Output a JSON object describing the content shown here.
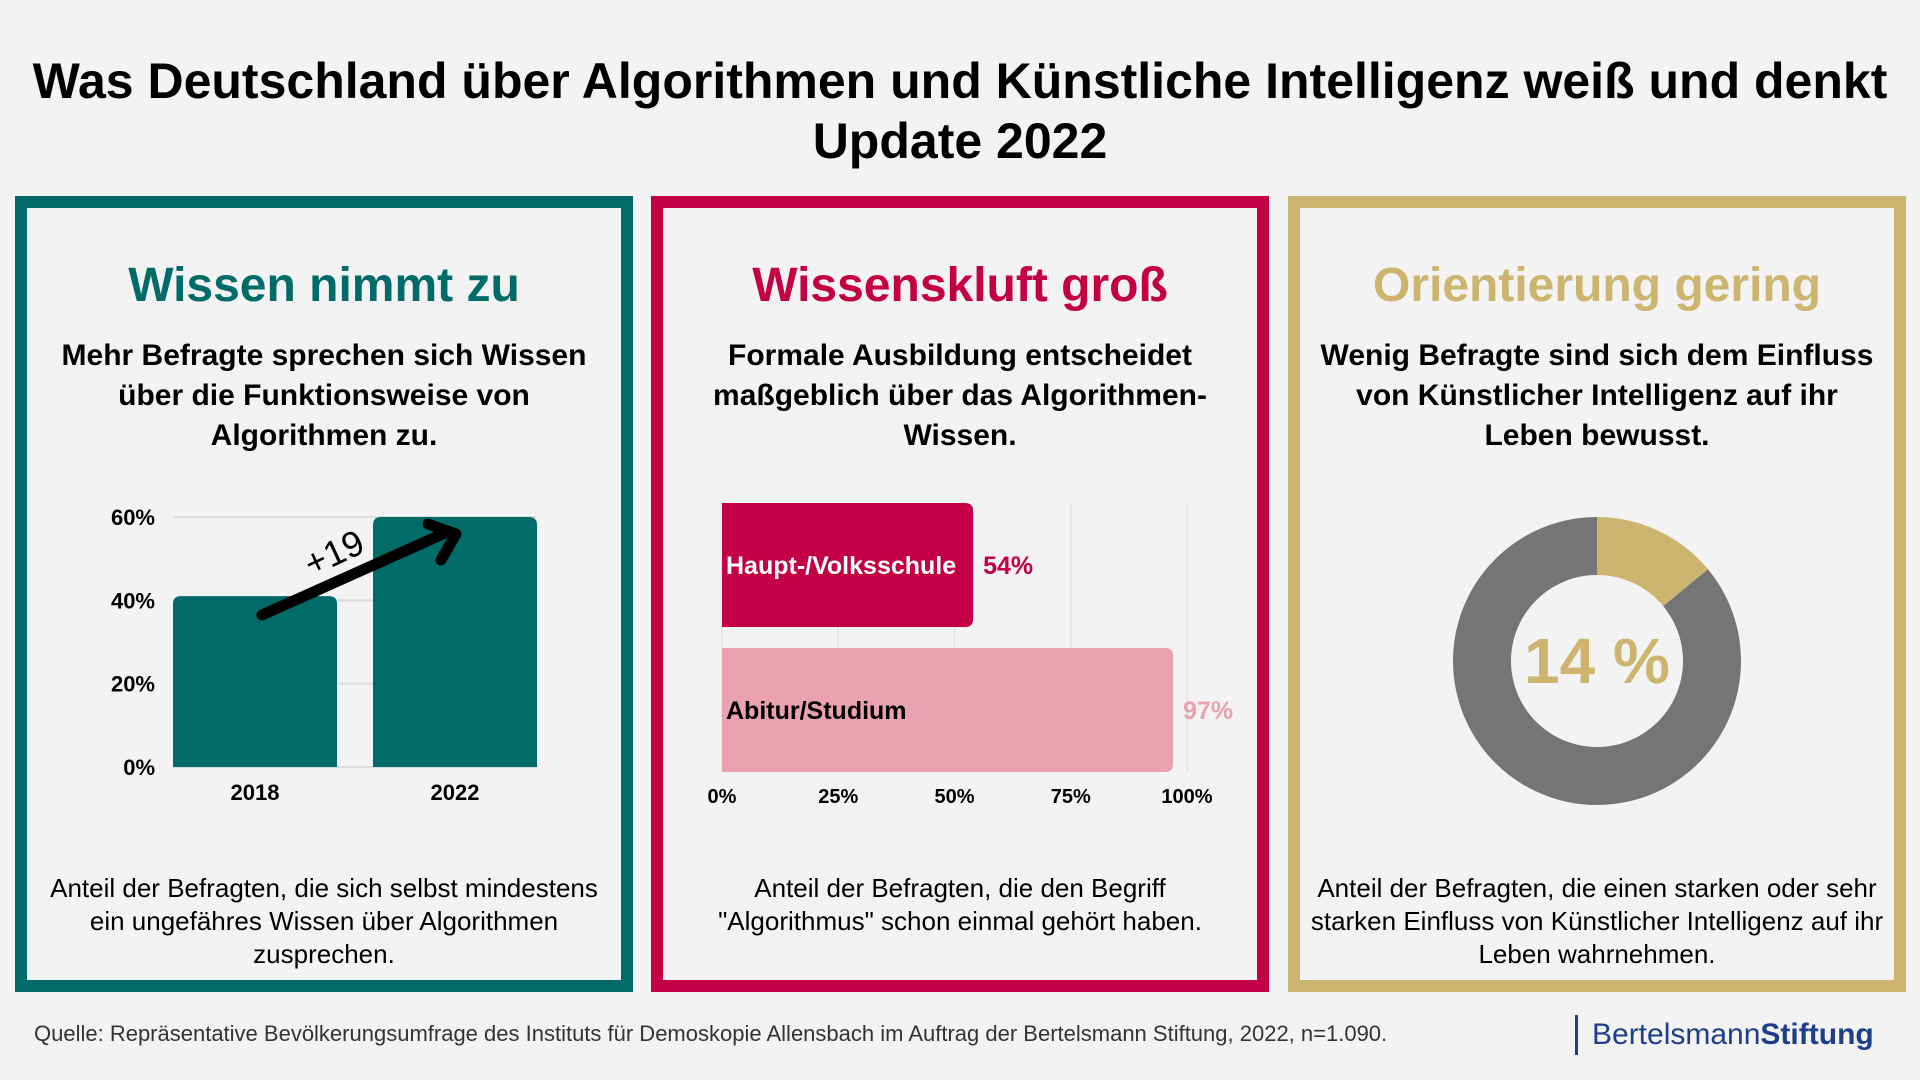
{
  "title": {
    "line1": "Was Deutschland über Algorithmen und Künstliche Intelligenz weiß und denkt",
    "line2": "Update 2022"
  },
  "panels": [
    {
      "heading": "Wissen nimmt zu",
      "subtitle": "Mehr Befragte sprechen sich Wissen über die Funktionsweise von Algorithmen zu.",
      "caption": "Anteil der Befragten, die sich selbst mindestens ein ungefähres Wissen über Algorithmen zusprechen.",
      "color": "#006b68"
    },
    {
      "heading": "Wissenskluft groß",
      "subtitle": "Formale Ausbildung entscheidet maßgeblich über das Algorithmen-Wissen.",
      "caption": "Anteil der Befragten, die den Begriff \"Algorithmus\" schon einmal gehört haben.",
      "color": "#c30045"
    },
    {
      "heading": "Orientierung gering",
      "subtitle": "Wenig Befragte sind sich dem Einfluss von Künstlicher Intelligenz auf ihr Leben bewusst.",
      "caption": "Anteil der Befragten, die einen starken oder sehr starken Einfluss von Künstlicher Intelligenz auf ihr Leben wahrnehmen.",
      "color": "#cdb56f"
    }
  ],
  "chart_data": [
    {
      "type": "bar",
      "categories": [
        "2018",
        "2022"
      ],
      "values": [
        41,
        60
      ],
      "ylim": [
        0,
        60
      ],
      "yticks": [
        "0%",
        "20%",
        "40%",
        "60%"
      ],
      "grid": true,
      "annotation": "+19",
      "color": "#006b68"
    },
    {
      "type": "bar",
      "orientation": "horizontal",
      "categories": [
        "Haupt-/Volksschule",
        "Abitur/Studium"
      ],
      "values": [
        54,
        97
      ],
      "labels": [
        "54%",
        "97%"
      ],
      "xlim": [
        0,
        100
      ],
      "xticks": [
        "0%",
        "25%",
        "50%",
        "75%",
        "100%"
      ],
      "grid": true,
      "colors": [
        "#c30045",
        "#eaa1b0"
      ]
    },
    {
      "type": "pie",
      "donut": true,
      "values": [
        14,
        86
      ],
      "center_label": "14 %",
      "colors": [
        "#cdb56f",
        "#757575"
      ]
    }
  ],
  "footer": {
    "source": "Quelle: Repräsentative Bevölkerungsumfrage des Instituts für Demoskopie Allensbach im Auftrag der Bertelsmann Stiftung, 2022, n=1.090.",
    "logo_light": "Bertelsmann",
    "logo_bold": "Stiftung"
  }
}
